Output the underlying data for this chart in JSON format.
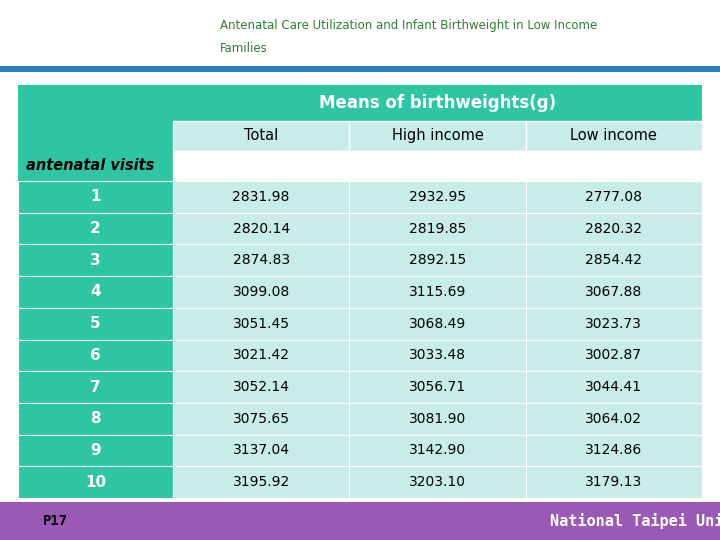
{
  "title_line1": "Antenatal Care Utilization and Infant Birthweight in Low Income",
  "title_line2": "Families",
  "header_main": "Means of birthweights(g)",
  "col_headers": [
    "Total",
    "High income",
    "Low income"
  ],
  "row_label_header": "antenatal visits",
  "row_labels": [
    "1",
    "2",
    "3",
    "4",
    "5",
    "6",
    "7",
    "8",
    "9",
    "10"
  ],
  "data": [
    [
      "2831.98",
      "2932.95",
      "2777.08"
    ],
    [
      "2820.14",
      "2819.85",
      "2820.32"
    ],
    [
      "2874.83",
      "2892.15",
      "2854.42"
    ],
    [
      "3099.08",
      "3115.69",
      "3067.88"
    ],
    [
      "3051.45",
      "3068.49",
      "3023.73"
    ],
    [
      "3021.42",
      "3033.48",
      "3002.87"
    ],
    [
      "3052.14",
      "3056.71",
      "3044.41"
    ],
    [
      "3075.65",
      "3081.90",
      "3064.02"
    ],
    [
      "3137.04",
      "3142.90",
      "3124.86"
    ],
    [
      "3195.92",
      "3203.10",
      "3179.13"
    ]
  ],
  "teal_color": "#2DC5A2",
  "light_teal": "#C8EDE8",
  "white": "#FFFFFF",
  "footer_bar_color": "#9B59B6",
  "title_color": "#2E7D32",
  "slide_num": "P17",
  "footer_text": "National Taipei University",
  "top_bar_color": "#2980B9",
  "logo_area_color": "#FFFFFF"
}
